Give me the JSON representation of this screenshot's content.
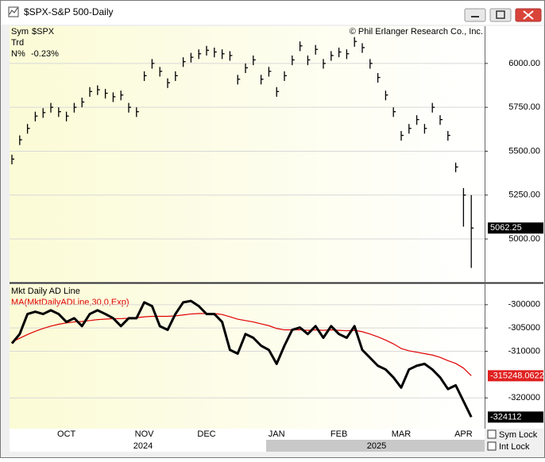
{
  "window": {
    "title": "$SPX-S&P 500-Daily"
  },
  "chart_data": [
    {
      "type": "ohlc",
      "symbol_label": "Sym",
      "symbol": "$SPX",
      "trend_label": "Trd",
      "change_label": "N%",
      "change": "-0.23%",
      "credit": "© Phil Erlanger Research Co., Inc.",
      "color": "#000000",
      "categories": [
        null,
        null,
        null,
        null,
        null,
        null,
        null,
        "OCT",
        null,
        null,
        null,
        null,
        null,
        null,
        null,
        null,
        null,
        "NOV",
        null,
        null,
        null,
        null,
        null,
        null,
        null,
        "DEC",
        null,
        null,
        null,
        null,
        null,
        null,
        null,
        null,
        "JAN",
        null,
        null,
        null,
        null,
        null,
        null,
        null,
        "FEB",
        null,
        null,
        null,
        null,
        null,
        null,
        null,
        "MAR",
        null,
        null,
        null,
        null,
        null,
        null,
        null,
        "APR",
        null
      ],
      "high": [
        5480,
        5590,
        5655,
        5725,
        5745,
        5775,
        5750,
        5725,
        5775,
        5805,
        5865,
        5875,
        5855,
        5835,
        5845,
        5775,
        5750,
        5955,
        6025,
        5980,
        5915,
        5955,
        6035,
        6060,
        6080,
        6100,
        6090,
        6080,
        6070,
        5935,
        6000,
        6045,
        5935,
        5980,
        5865,
        5955,
        6045,
        6125,
        6045,
        6105,
        6025,
        6070,
        6090,
        6080,
        6150,
        6115,
        6025,
        5945,
        5845,
        5750,
        5615,
        5655,
        5705,
        5655,
        5775,
        5705,
        5615,
        5435,
        5290,
        5250
      ],
      "low": [
        5425,
        5535,
        5600,
        5670,
        5690,
        5720,
        5695,
        5670,
        5720,
        5750,
        5810,
        5820,
        5800,
        5780,
        5790,
        5720,
        5695,
        5900,
        5970,
        5925,
        5860,
        5900,
        5980,
        6005,
        6025,
        6045,
        6035,
        6025,
        6015,
        5880,
        5945,
        5990,
        5880,
        5925,
        5810,
        5900,
        5990,
        6070,
        5990,
        6050,
        5970,
        6015,
        6035,
        6025,
        6095,
        6060,
        5970,
        5890,
        5790,
        5695,
        5560,
        5600,
        5650,
        5600,
        5720,
        5650,
        5560,
        5380,
        5070,
        4835
      ],
      "close": [
        5455,
        5565,
        5630,
        5700,
        5720,
        5750,
        5725,
        5700,
        5750,
        5780,
        5840,
        5850,
        5830,
        5810,
        5820,
        5750,
        5725,
        5930,
        6000,
        5955,
        5890,
        5930,
        6010,
        6035,
        6055,
        6075,
        6065,
        6055,
        6045,
        5910,
        5975,
        6020,
        5910,
        5955,
        5840,
        5930,
        6020,
        6100,
        6020,
        6080,
        6000,
        6045,
        6065,
        6055,
        6125,
        6090,
        6000,
        5920,
        5820,
        5725,
        5590,
        5630,
        5680,
        5630,
        5750,
        5680,
        5590,
        5410,
        5250,
        5062.25
      ],
      "ylim": [
        4756,
        6212
      ],
      "yticks": [
        {
          "value": 5000,
          "label": "5000.00"
        },
        {
          "value": 5250,
          "label": "5250.00"
        },
        {
          "value": 5500,
          "label": "5500.00"
        },
        {
          "value": 5750,
          "label": "5750.00"
        },
        {
          "value": 6000,
          "label": "6000.00"
        }
      ],
      "grid": true
    },
    {
      "type": "line",
      "title": "Mkt Daily AD Line",
      "series": [
        {
          "name": "MA(MktDailyADLine,30,0,Exp)",
          "color": "#e00000",
          "values": [
            -308000,
            -307200,
            -306400,
            -305700,
            -305100,
            -304600,
            -304200,
            -303900,
            -303700,
            -303600,
            -303400,
            -303200,
            -303100,
            -303000,
            -303000,
            -302900,
            -302800,
            -302600,
            -302500,
            -302500,
            -302500,
            -302400,
            -302200,
            -302000,
            -301900,
            -301900,
            -301900,
            -302100,
            -302600,
            -303100,
            -303400,
            -303700,
            -304100,
            -304500,
            -305100,
            -305400,
            -305400,
            -305400,
            -305500,
            -305400,
            -305500,
            -305400,
            -305500,
            -305600,
            -305500,
            -305800,
            -306300,
            -306900,
            -307600,
            -308400,
            -309400,
            -309900,
            -310200,
            -310500,
            -310800,
            -311300,
            -312000,
            -312600,
            -313600,
            -315248.0622
          ]
        },
        {
          "name": "Mkt Daily AD Line",
          "color": "#000000",
          "values": [
            -308300,
            -306300,
            -302000,
            -301500,
            -302000,
            -301200,
            -302000,
            -303700,
            -302900,
            -304600,
            -302000,
            -301200,
            -302000,
            -302900,
            -304600,
            -302900,
            -302900,
            -299500,
            -300300,
            -304600,
            -305400,
            -302000,
            -299500,
            -299200,
            -300300,
            -302000,
            -302000,
            -303700,
            -309700,
            -310500,
            -306300,
            -307100,
            -308800,
            -309700,
            -312700,
            -308800,
            -305400,
            -304900,
            -306300,
            -304600,
            -307100,
            -304600,
            -306300,
            -307100,
            -304600,
            -309700,
            -311400,
            -313100,
            -313900,
            -315600,
            -317800,
            -313900,
            -313100,
            -312700,
            -313900,
            -315600,
            -318100,
            -317300,
            -320700,
            -324112
          ]
        }
      ],
      "ylim": [
        -326600,
        -295600
      ],
      "yticks": [
        -300000,
        -305000,
        -310000,
        -320000
      ],
      "grid": true
    }
  ],
  "timeline": {
    "years": [
      "2024",
      "2025"
    ]
  },
  "controls": {
    "sym_lock": "Sym Lock",
    "int_lock": "Int Lock"
  }
}
